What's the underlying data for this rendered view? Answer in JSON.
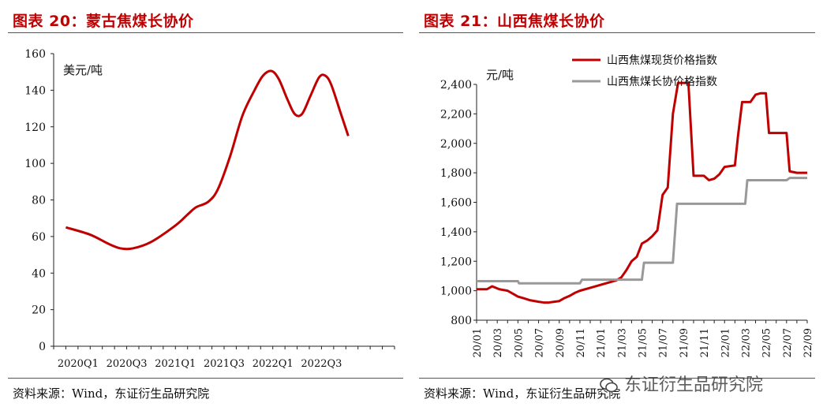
{
  "colors": {
    "title": "#c00000",
    "series_red": "#c00000",
    "series_gray": "#999999",
    "axis": "#222222"
  },
  "left": {
    "title": "图表 20：蒙古焦煤长协价",
    "source": "资料来源：Wind，东证衍生品研究院"
  },
  "right": {
    "title": "图表 21：山西焦煤长协价",
    "source": "资料来源：Wind，东证衍生品研究院"
  },
  "watermark": {
    "text": "东证衍生品研究院",
    "icon": "wechat-icon"
  },
  "chart_data": [
    {
      "type": "line",
      "unit_label": "美元/吨",
      "ylim": [
        0,
        160
      ],
      "yticks": [
        0,
        20,
        40,
        60,
        80,
        100,
        120,
        140,
        160
      ],
      "xlim": [
        0,
        28
      ],
      "x_tick_labels": [
        {
          "x": 2,
          "label": "2020Q1"
        },
        {
          "x": 6,
          "label": "2020Q3"
        },
        {
          "x": 10,
          "label": "2021Q1"
        },
        {
          "x": 14,
          "label": "2021Q3"
        },
        {
          "x": 18,
          "label": "2022Q1"
        },
        {
          "x": 22,
          "label": "2022Q3"
        }
      ],
      "series": [
        {
          "color": "#c00000",
          "points": [
            [
              1,
              65
            ],
            [
              3,
              61
            ],
            [
              4.5,
              56
            ],
            [
              5.5,
              53.5
            ],
            [
              6.5,
              53.5
            ],
            [
              8,
              57
            ],
            [
              10,
              66
            ],
            [
              11,
              72
            ],
            [
              11.7,
              76
            ],
            [
              12.7,
              79
            ],
            [
              13.5,
              86
            ],
            [
              14.5,
              104
            ],
            [
              15.5,
              126
            ],
            [
              16.5,
              140
            ],
            [
              17.2,
              148
            ],
            [
              17.9,
              150.5
            ],
            [
              18.5,
              146
            ],
            [
              19.2,
              135
            ],
            [
              19.8,
              127
            ],
            [
              20.4,
              127
            ],
            [
              21.1,
              137
            ],
            [
              21.8,
              147
            ],
            [
              22.3,
              148
            ],
            [
              22.8,
              143
            ],
            [
              23.6,
              127
            ],
            [
              24.2,
              115
            ]
          ]
        }
      ]
    },
    {
      "type": "line",
      "unit_label": "元/吨",
      "ylim": [
        800,
        2400
      ],
      "yticks": [
        800,
        1000,
        1200,
        1400,
        1600,
        1800,
        2000,
        2200,
        2400
      ],
      "y_tick_labels": [
        "800",
        "1,000",
        "1,200",
        "1,400",
        "1,600",
        "1,800",
        "2,000",
        "2,200",
        "2,400"
      ],
      "x_tick_labels": [
        "20/01",
        "20/03",
        "20/05",
        "20/07",
        "20/09",
        "20/11",
        "21/01",
        "21/03",
        "21/05",
        "21/07",
        "21/09",
        "21/11",
        "22/01",
        "22/03",
        "22/05",
        "22/07",
        "22/09"
      ],
      "legend": [
        "山西焦煤现货价格指数",
        "山西焦煤长协价格指数"
      ],
      "series": [
        {
          "name": "山西焦煤现货价格指数",
          "color": "#c00000",
          "points": [
            [
              0,
              1010
            ],
            [
              1,
              1010
            ],
            [
              1.5,
              1030
            ],
            [
              2.2,
              1010
            ],
            [
              3,
              1000
            ],
            [
              3.5,
              980
            ],
            [
              4,
              960
            ],
            [
              4.5,
              950
            ],
            [
              5.2,
              935
            ],
            [
              6,
              925
            ],
            [
              6.5,
              920
            ],
            [
              7,
              920
            ],
            [
              7.5,
              925
            ],
            [
              8,
              930
            ],
            [
              8.5,
              950
            ],
            [
              9,
              965
            ],
            [
              9.5,
              985
            ],
            [
              10,
              1000
            ],
            [
              11,
              1020
            ],
            [
              12,
              1040
            ],
            [
              12.5,
              1050
            ],
            [
              13,
              1060
            ],
            [
              13.5,
              1070
            ],
            [
              14,
              1090
            ],
            [
              14.5,
              1140
            ],
            [
              15,
              1200
            ],
            [
              15.5,
              1230
            ],
            [
              16,
              1320
            ],
            [
              16.5,
              1340
            ],
            [
              17,
              1370
            ],
            [
              17.5,
              1410
            ],
            [
              18,
              1650
            ],
            [
              18.5,
              1700
            ],
            [
              19,
              2200
            ],
            [
              19.5,
              2410
            ],
            [
              20,
              2410
            ],
            [
              20.5,
              2410
            ],
            [
              21,
              1780
            ],
            [
              22,
              1780
            ],
            [
              22.5,
              1750
            ],
            [
              23,
              1760
            ],
            [
              23.5,
              1790
            ],
            [
              24,
              1840
            ],
            [
              25,
              1850
            ],
            [
              25.3,
              2050
            ],
            [
              25.7,
              2280
            ],
            [
              26.5,
              2280
            ],
            [
              27,
              2330
            ],
            [
              27.5,
              2340
            ],
            [
              28,
              2340
            ],
            [
              28.3,
              2070
            ],
            [
              29,
              2070
            ],
            [
              30,
              2070
            ],
            [
              30.3,
              1810
            ],
            [
              31,
              1800
            ],
            [
              32,
              1800
            ]
          ]
        },
        {
          "name": "山西焦煤长协价格指数",
          "color": "#999999",
          "points": [
            [
              0,
              1065
            ],
            [
              4,
              1065
            ],
            [
              4.1,
              1050
            ],
            [
              6,
              1050
            ],
            [
              9,
              1050
            ],
            [
              10,
              1050
            ],
            [
              10.2,
              1075
            ],
            [
              14,
              1075
            ],
            [
              15,
              1075
            ],
            [
              16,
              1075
            ],
            [
              16.2,
              1190
            ],
            [
              18,
              1190
            ],
            [
              19,
              1190
            ],
            [
              19.4,
              1590
            ],
            [
              20,
              1590
            ],
            [
              21,
              1590
            ],
            [
              26,
              1590
            ],
            [
              26.2,
              1750
            ],
            [
              27,
              1750
            ],
            [
              30,
              1750
            ],
            [
              30.3,
              1765
            ],
            [
              32,
              1765
            ]
          ]
        }
      ]
    }
  ]
}
